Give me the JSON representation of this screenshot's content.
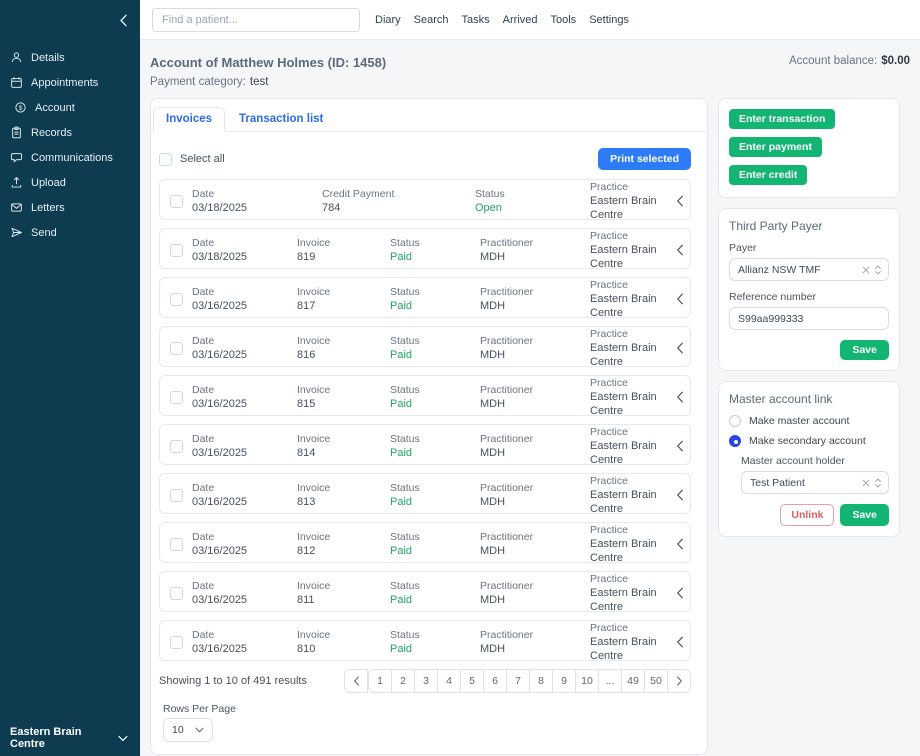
{
  "colors": {
    "sidebar_bg": "#0d3c51",
    "primary_blue": "#2b6ceb",
    "button_blue": "#2e7cf5",
    "action_green": "#13b573",
    "status_green": "#1fa762",
    "danger_red": "#e25c5c",
    "radio_blue": "#2b46e0",
    "page_bg": "#f5f6f8"
  },
  "sidebar": {
    "items": [
      {
        "icon": "person-icon",
        "label": "Details"
      },
      {
        "icon": "calendar-icon",
        "label": "Appointments"
      },
      {
        "icon": "dollar-circle-icon",
        "label": "Account"
      },
      {
        "icon": "clipboard-icon",
        "label": "Records"
      },
      {
        "icon": "chat-bubble-icon",
        "label": "Communications"
      },
      {
        "icon": "upload-icon",
        "label": "Upload"
      },
      {
        "icon": "envelope-icon",
        "label": "Letters"
      },
      {
        "icon": "paper-plane-icon",
        "label": "Send"
      }
    ],
    "active_item": "Account",
    "practice_name": "Eastern Brain Centre"
  },
  "topbar": {
    "search_placeholder": "Find a patient...",
    "menu": [
      "Diary",
      "Search",
      "Tasks",
      "Arrived",
      "Tools",
      "Settings"
    ]
  },
  "header": {
    "title": "Account of Matthew Holmes (ID: 1458)",
    "balance_label": "Account balance:",
    "balance_value": "$0.00",
    "payment_category_label": "Payment category:",
    "payment_category_value": "test"
  },
  "invoices_panel": {
    "tabs": [
      "Invoices",
      "Transaction list"
    ],
    "active_tab": "Invoices",
    "select_all_label": "Select all",
    "print_button": "Print selected",
    "rows": [
      {
        "type": "credit",
        "cells": [
          {
            "label": "Date",
            "value": "03/18/2025"
          },
          {
            "label": "Credit Payment",
            "value": "784"
          },
          {
            "label": "Status",
            "value": "Open",
            "status": true
          },
          {
            "label": "Practice",
            "value": "Eastern Brain Centre"
          }
        ]
      },
      {
        "type": "invoice",
        "cells": [
          {
            "label": "Date",
            "value": "03/18/2025"
          },
          {
            "label": "Invoice",
            "value": "819"
          },
          {
            "label": "Status",
            "value": "Paid",
            "status": true
          },
          {
            "label": "Practitioner",
            "value": "MDH"
          },
          {
            "label": "Practice",
            "value": "Eastern Brain Centre"
          }
        ]
      },
      {
        "type": "invoice",
        "cells": [
          {
            "label": "Date",
            "value": "03/16/2025"
          },
          {
            "label": "Invoice",
            "value": "817"
          },
          {
            "label": "Status",
            "value": "Paid",
            "status": true
          },
          {
            "label": "Practitioner",
            "value": "MDH"
          },
          {
            "label": "Practice",
            "value": "Eastern Brain Centre"
          }
        ]
      },
      {
        "type": "invoice",
        "cells": [
          {
            "label": "Date",
            "value": "03/16/2025"
          },
          {
            "label": "Invoice",
            "value": "816"
          },
          {
            "label": "Status",
            "value": "Paid",
            "status": true
          },
          {
            "label": "Practitioner",
            "value": "MDH"
          },
          {
            "label": "Practice",
            "value": "Eastern Brain Centre"
          }
        ]
      },
      {
        "type": "invoice",
        "cells": [
          {
            "label": "Date",
            "value": "03/16/2025"
          },
          {
            "label": "Invoice",
            "value": "815"
          },
          {
            "label": "Status",
            "value": "Paid",
            "status": true
          },
          {
            "label": "Practitioner",
            "value": "MDH"
          },
          {
            "label": "Practice",
            "value": "Eastern Brain Centre"
          }
        ]
      },
      {
        "type": "invoice",
        "cells": [
          {
            "label": "Date",
            "value": "03/16/2025"
          },
          {
            "label": "Invoice",
            "value": "814"
          },
          {
            "label": "Status",
            "value": "Paid",
            "status": true
          },
          {
            "label": "Practitioner",
            "value": "MDH"
          },
          {
            "label": "Practice",
            "value": "Eastern Brain Centre"
          }
        ]
      },
      {
        "type": "invoice",
        "cells": [
          {
            "label": "Date",
            "value": "03/16/2025"
          },
          {
            "label": "Invoice",
            "value": "813"
          },
          {
            "label": "Status",
            "value": "Paid",
            "status": true
          },
          {
            "label": "Practitioner",
            "value": "MDH"
          },
          {
            "label": "Practice",
            "value": "Eastern Brain Centre"
          }
        ]
      },
      {
        "type": "invoice",
        "cells": [
          {
            "label": "Date",
            "value": "03/16/2025"
          },
          {
            "label": "Invoice",
            "value": "812"
          },
          {
            "label": "Status",
            "value": "Paid",
            "status": true
          },
          {
            "label": "Practitioner",
            "value": "MDH"
          },
          {
            "label": "Practice",
            "value": "Eastern Brain Centre"
          }
        ]
      },
      {
        "type": "invoice",
        "cells": [
          {
            "label": "Date",
            "value": "03/16/2025"
          },
          {
            "label": "Invoice",
            "value": "811"
          },
          {
            "label": "Status",
            "value": "Paid",
            "status": true
          },
          {
            "label": "Practitioner",
            "value": "MDH"
          },
          {
            "label": "Practice",
            "value": "Eastern Brain Centre"
          }
        ]
      },
      {
        "type": "invoice",
        "cells": [
          {
            "label": "Date",
            "value": "03/16/2025"
          },
          {
            "label": "Invoice",
            "value": "810"
          },
          {
            "label": "Status",
            "value": "Paid",
            "status": true
          },
          {
            "label": "Practitioner",
            "value": "MDH"
          },
          {
            "label": "Practice",
            "value": "Eastern Brain Centre"
          }
        ]
      }
    ],
    "pagination": {
      "summary": "Showing 1 to 10 of 491 results",
      "pages": [
        "1",
        "2",
        "3",
        "4",
        "5",
        "6",
        "7",
        "8",
        "9",
        "10",
        "...",
        "49",
        "50"
      ]
    },
    "rows_per_page_label": "Rows Per Page",
    "rows_per_page_value": "10"
  },
  "account_actions": {
    "buttons": [
      "Enter transaction",
      "Enter payment",
      "Enter credit"
    ]
  },
  "third_party_payer": {
    "title": "Third Party Payer",
    "payer_label": "Payer",
    "payer_value": "Allianz NSW TMF",
    "reference_label": "Reference number",
    "reference_value": "S99aa999333",
    "save_label": "Save"
  },
  "master_account": {
    "title": "Master account link",
    "options": [
      "Make master account",
      "Make secondary account"
    ],
    "selected_option": "Make secondary account",
    "holder_label": "Master account holder",
    "holder_value": "Test Patient",
    "unlink_label": "Unlink",
    "save_label": "Save"
  }
}
